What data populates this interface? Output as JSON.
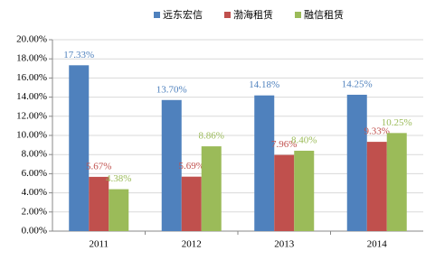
{
  "chart_data": {
    "type": "bar",
    "categories": [
      "2011",
      "2012",
      "2013",
      "2014"
    ],
    "series": [
      {
        "name": "远东宏信",
        "color": "#4f81bd",
        "values": [
          17.33,
          13.7,
          14.18,
          14.25
        ],
        "value_labels": [
          "17.33%",
          "13.70%",
          "14.18%",
          "14.25%"
        ]
      },
      {
        "name": "渤海租赁",
        "color": "#c0504d",
        "values": [
          5.67,
          5.69,
          7.96,
          9.33
        ],
        "value_labels": [
          "5.67%",
          "5.69%",
          "7.96%",
          "9.33%"
        ]
      },
      {
        "name": "融信租赁",
        "color": "#9bbb59",
        "values": [
          4.38,
          8.86,
          8.4,
          10.25
        ],
        "value_labels": [
          "4.38%",
          "8.86%",
          "8.40%",
          "10.25%"
        ]
      }
    ],
    "ylim": [
      0,
      20
    ],
    "yticks": [
      {
        "value": 0,
        "label": "0.00%"
      },
      {
        "value": 2,
        "label": "2.00%"
      },
      {
        "value": 4,
        "label": "4.00%"
      },
      {
        "value": 6,
        "label": "6.00%"
      },
      {
        "value": 8,
        "label": "8.00%"
      },
      {
        "value": 10,
        "label": "10.00%"
      },
      {
        "value": 12,
        "label": "12.00%"
      },
      {
        "value": 14,
        "label": "14.00%"
      },
      {
        "value": 16,
        "label": "16.00%"
      },
      {
        "value": 18,
        "label": "18.00%"
      },
      {
        "value": 20,
        "label": "20.00%"
      }
    ],
    "grid": true,
    "legend": "top"
  }
}
